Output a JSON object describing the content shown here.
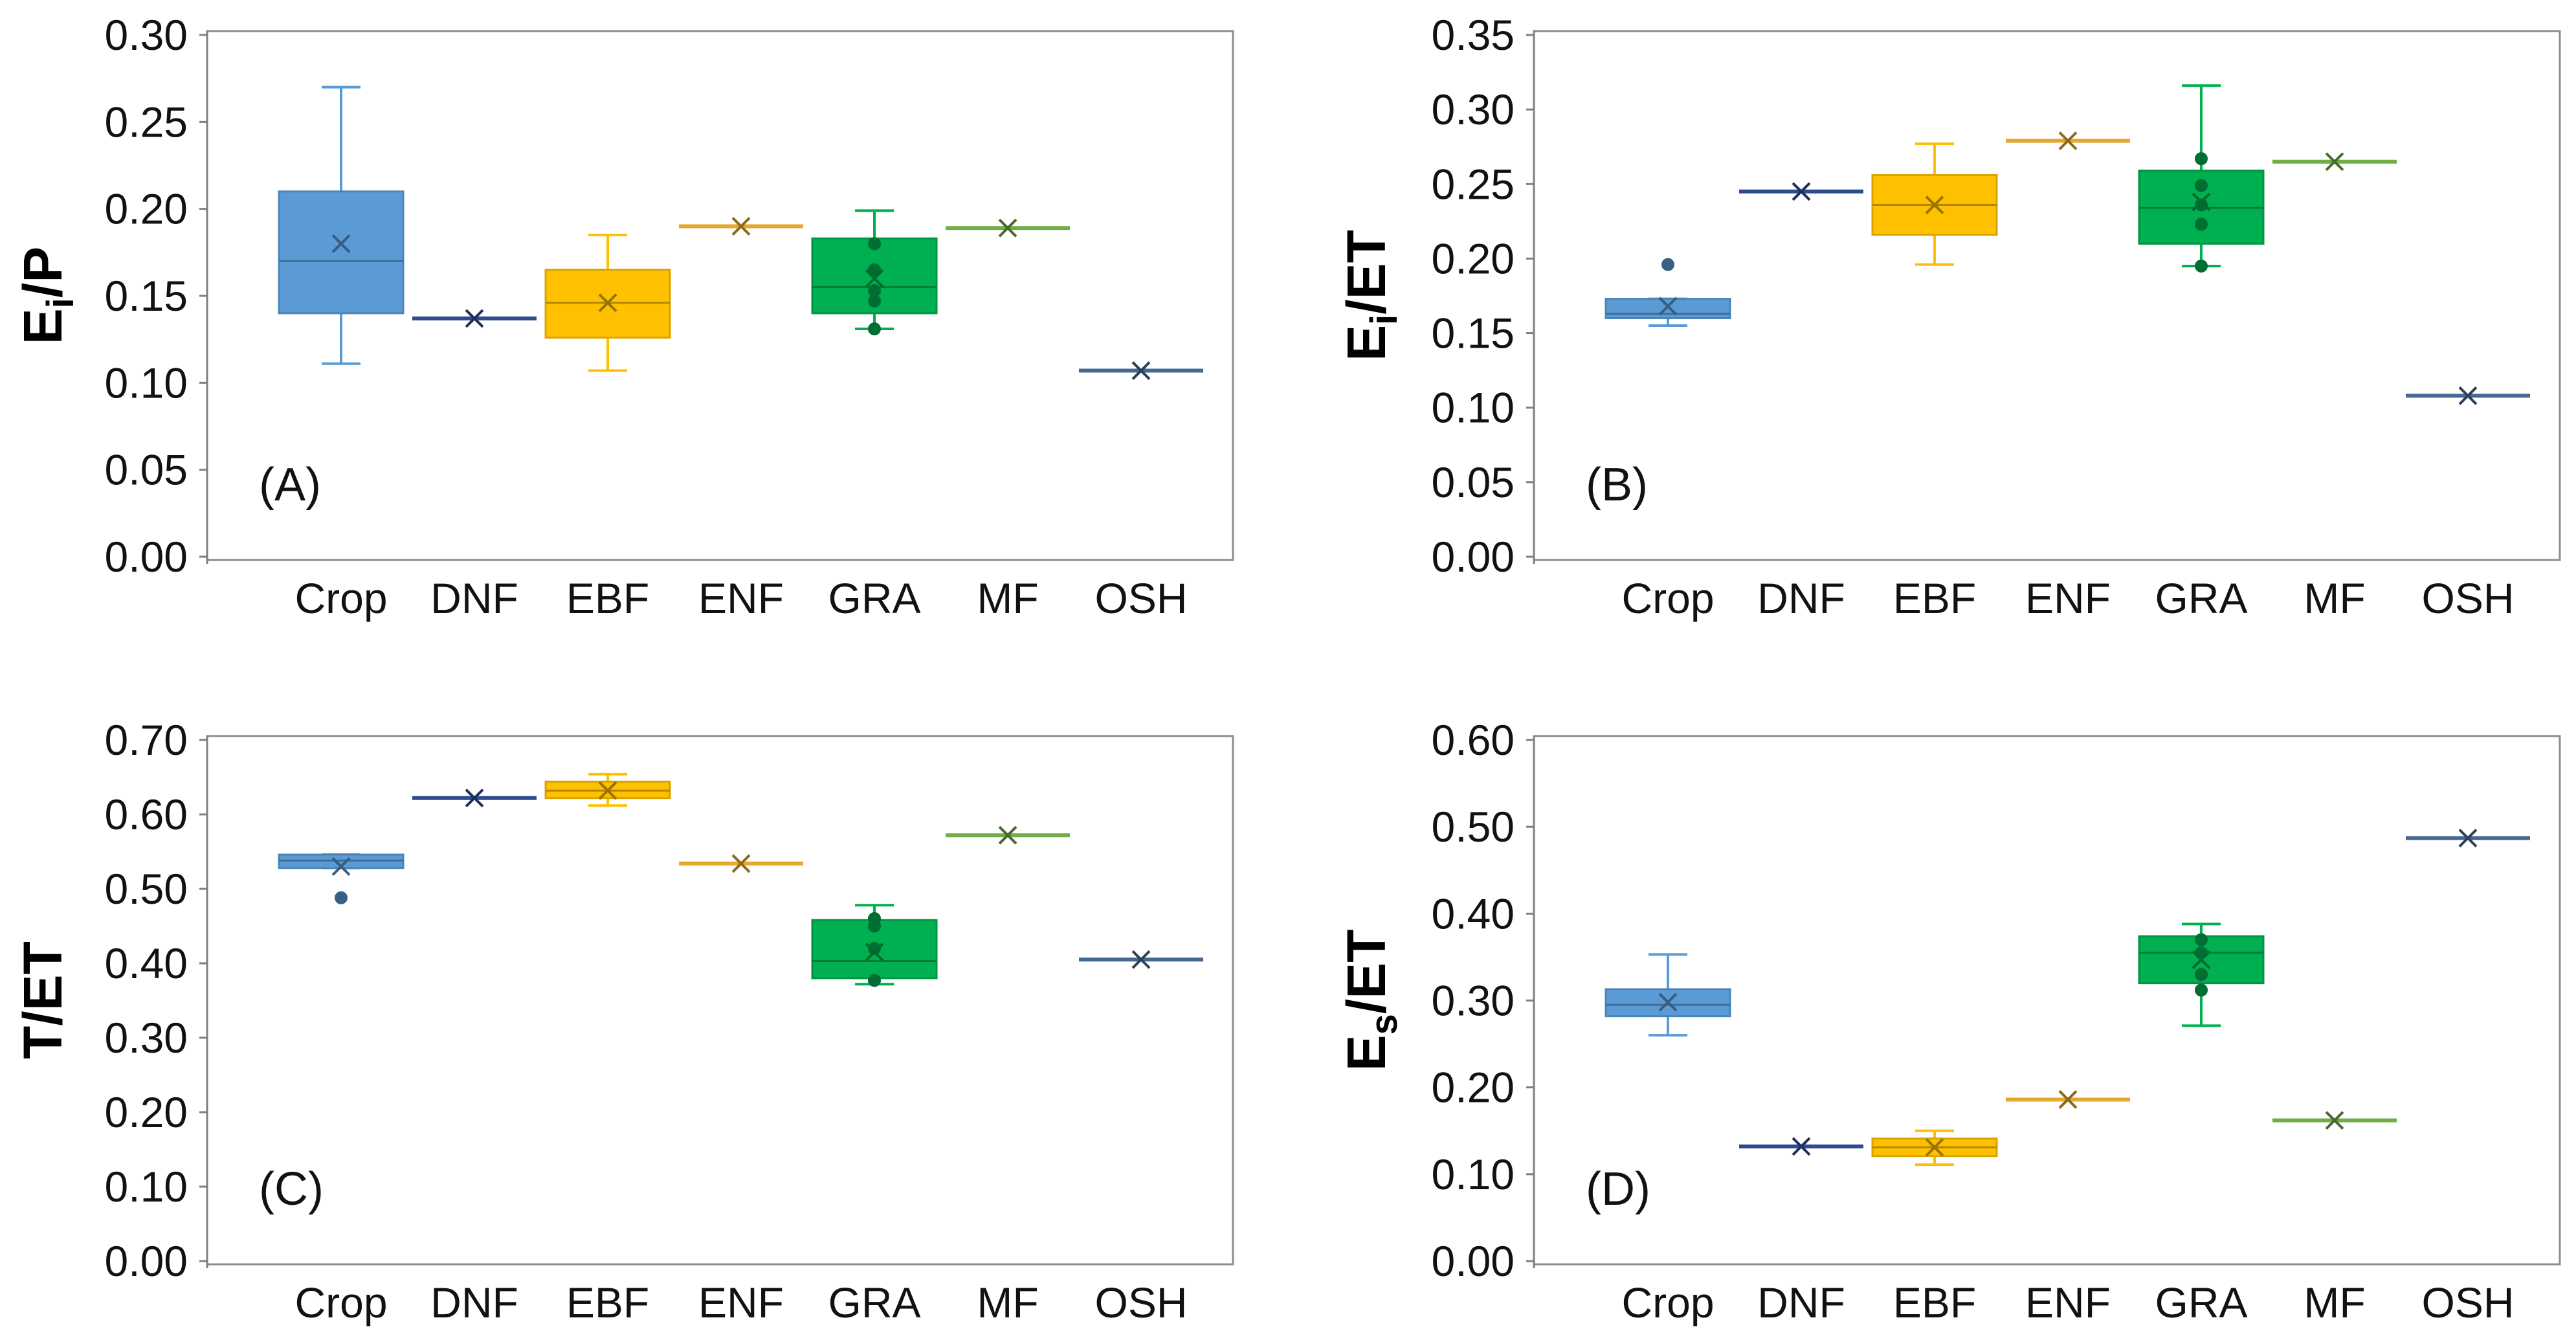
{
  "chart_data": [
    {
      "type": "boxplot",
      "panel_label": "(A)",
      "ylabel_main": "E",
      "ylabel_sub": "i",
      "ylabel_tail": "/P",
      "ylim": [
        0,
        0.3
      ],
      "yticks": [
        "0.00",
        "0.05",
        "0.10",
        "0.15",
        "0.20",
        "0.25",
        "0.30"
      ],
      "categories": [
        "Crop",
        "DNF",
        "EBF",
        "ENF",
        "GRA",
        "MF",
        "OSH"
      ],
      "series": [
        {
          "name": "Crop",
          "color": "#5b9bd5",
          "min": 0.111,
          "q1": 0.14,
          "median": 0.17,
          "q3": 0.21,
          "max": 0.27,
          "mean": 0.18,
          "points": []
        },
        {
          "name": "DNF",
          "color": "#2f4b8f",
          "min": 0.137,
          "q1": 0.137,
          "median": 0.137,
          "q3": 0.137,
          "max": 0.137,
          "mean": 0.137,
          "points": []
        },
        {
          "name": "EBF",
          "color": "#ffc000",
          "min": 0.107,
          "q1": 0.126,
          "median": 0.146,
          "q3": 0.165,
          "max": 0.185,
          "mean": 0.146,
          "points": []
        },
        {
          "name": "ENF",
          "color": "#e4a82c",
          "min": 0.19,
          "q1": 0.19,
          "median": 0.19,
          "q3": 0.19,
          "max": 0.19,
          "mean": 0.19,
          "points": []
        },
        {
          "name": "GRA",
          "color": "#00b050",
          "min": 0.131,
          "q1": 0.14,
          "median": 0.155,
          "q3": 0.183,
          "max": 0.199,
          "mean": 0.16,
          "points": [
            0.131,
            0.147,
            0.153,
            0.165,
            0.18
          ]
        },
        {
          "name": "MF",
          "color": "#70ad47",
          "min": 0.189,
          "q1": 0.189,
          "median": 0.189,
          "q3": 0.189,
          "max": 0.189,
          "mean": 0.189,
          "points": []
        },
        {
          "name": "OSH",
          "color": "#44688f",
          "min": 0.107,
          "q1": 0.107,
          "median": 0.107,
          "q3": 0.107,
          "max": 0.107,
          "mean": 0.107,
          "points": []
        }
      ]
    },
    {
      "type": "boxplot",
      "panel_label": "(B)",
      "ylabel_main": "E",
      "ylabel_sub": "i",
      "ylabel_tail": "/ET",
      "ylim": [
        0,
        0.35
      ],
      "yticks": [
        "0.00",
        "0.05",
        "0.10",
        "0.15",
        "0.20",
        "0.25",
        "0.30",
        "0.35"
      ],
      "categories": [
        "Crop",
        "DNF",
        "EBF",
        "ENF",
        "GRA",
        "MF",
        "OSH"
      ],
      "series": [
        {
          "name": "Crop",
          "color": "#5b9bd5",
          "min": 0.155,
          "q1": 0.16,
          "median": 0.163,
          "q3": 0.173,
          "max": 0.173,
          "mean": 0.168,
          "points": [
            0.196
          ]
        },
        {
          "name": "DNF",
          "color": "#2f4b8f",
          "min": 0.245,
          "q1": 0.245,
          "median": 0.245,
          "q3": 0.245,
          "max": 0.245,
          "mean": 0.245,
          "points": []
        },
        {
          "name": "EBF",
          "color": "#ffc000",
          "min": 0.196,
          "q1": 0.216,
          "median": 0.236,
          "q3": 0.256,
          "max": 0.277,
          "mean": 0.236,
          "points": []
        },
        {
          "name": "ENF",
          "color": "#e4a82c",
          "min": 0.279,
          "q1": 0.279,
          "median": 0.279,
          "q3": 0.279,
          "max": 0.279,
          "mean": 0.279,
          "points": []
        },
        {
          "name": "GRA",
          "color": "#00b050",
          "min": 0.195,
          "q1": 0.21,
          "median": 0.234,
          "q3": 0.259,
          "max": 0.316,
          "mean": 0.238,
          "points": [
            0.195,
            0.223,
            0.236,
            0.249,
            0.267
          ]
        },
        {
          "name": "MF",
          "color": "#70ad47",
          "min": 0.265,
          "q1": 0.265,
          "median": 0.265,
          "q3": 0.265,
          "max": 0.265,
          "mean": 0.265,
          "points": []
        },
        {
          "name": "OSH",
          "color": "#44688f",
          "min": 0.108,
          "q1": 0.108,
          "median": 0.108,
          "q3": 0.108,
          "max": 0.108,
          "mean": 0.108,
          "points": []
        }
      ]
    },
    {
      "type": "boxplot",
      "panel_label": "(C)",
      "ylabel_main": "T/ET",
      "ylabel_sub": "",
      "ylabel_tail": "",
      "ylim": [
        0,
        0.7
      ],
      "yticks": [
        "0.00",
        "0.10",
        "0.20",
        "0.30",
        "0.40",
        "0.50",
        "0.60",
        "0.70"
      ],
      "categories": [
        "Crop",
        "DNF",
        "EBF",
        "ENF",
        "GRA",
        "MF",
        "OSH"
      ],
      "series": [
        {
          "name": "Crop",
          "color": "#5b9bd5",
          "min": 0.528,
          "q1": 0.528,
          "median": 0.538,
          "q3": 0.546,
          "max": 0.546,
          "mean": 0.53,
          "points": [
            0.488
          ]
        },
        {
          "name": "DNF",
          "color": "#2f4b8f",
          "min": 0.622,
          "q1": 0.622,
          "median": 0.622,
          "q3": 0.622,
          "max": 0.622,
          "mean": 0.622,
          "points": []
        },
        {
          "name": "EBF",
          "color": "#ffc000",
          "min": 0.612,
          "q1": 0.622,
          "median": 0.632,
          "q3": 0.644,
          "max": 0.654,
          "mean": 0.632,
          "points": []
        },
        {
          "name": "ENF",
          "color": "#e4a82c",
          "min": 0.534,
          "q1": 0.534,
          "median": 0.534,
          "q3": 0.534,
          "max": 0.534,
          "mean": 0.534,
          "points": []
        },
        {
          "name": "GRA",
          "color": "#00b050",
          "min": 0.372,
          "q1": 0.38,
          "median": 0.403,
          "q3": 0.458,
          "max": 0.478,
          "mean": 0.415,
          "points": [
            0.377,
            0.42,
            0.45,
            0.46
          ]
        },
        {
          "name": "MF",
          "color": "#70ad47",
          "min": 0.572,
          "q1": 0.572,
          "median": 0.572,
          "q3": 0.572,
          "max": 0.572,
          "mean": 0.572,
          "points": []
        },
        {
          "name": "OSH",
          "color": "#44688f",
          "min": 0.405,
          "q1": 0.405,
          "median": 0.405,
          "q3": 0.405,
          "max": 0.405,
          "mean": 0.405,
          "points": []
        }
      ]
    },
    {
      "type": "boxplot",
      "panel_label": "(D)",
      "ylabel_main": "E",
      "ylabel_sub": "s",
      "ylabel_tail": "/ET",
      "ylim": [
        0,
        0.6
      ],
      "yticks": [
        "0.00",
        "0.10",
        "0.20",
        "0.30",
        "0.40",
        "0.50",
        "0.60"
      ],
      "categories": [
        "Crop",
        "DNF",
        "EBF",
        "ENF",
        "GRA",
        "MF",
        "OSH"
      ],
      "series": [
        {
          "name": "Crop",
          "color": "#5b9bd5",
          "min": 0.26,
          "q1": 0.282,
          "median": 0.295,
          "q3": 0.313,
          "max": 0.353,
          "mean": 0.298,
          "points": []
        },
        {
          "name": "DNF",
          "color": "#2f4b8f",
          "min": 0.132,
          "q1": 0.132,
          "median": 0.132,
          "q3": 0.132,
          "max": 0.132,
          "mean": 0.132,
          "points": []
        },
        {
          "name": "EBF",
          "color": "#ffc000",
          "min": 0.111,
          "q1": 0.121,
          "median": 0.131,
          "q3": 0.141,
          "max": 0.15,
          "mean": 0.131,
          "points": []
        },
        {
          "name": "ENF",
          "color": "#e4a82c",
          "min": 0.186,
          "q1": 0.186,
          "median": 0.186,
          "q3": 0.186,
          "max": 0.186,
          "mean": 0.186,
          "points": []
        },
        {
          "name": "GRA",
          "color": "#00b050",
          "min": 0.271,
          "q1": 0.32,
          "median": 0.355,
          "q3": 0.374,
          "max": 0.388,
          "mean": 0.347,
          "points": [
            0.312,
            0.33,
            0.355,
            0.37
          ]
        },
        {
          "name": "MF",
          "color": "#70ad47",
          "min": 0.162,
          "q1": 0.162,
          "median": 0.162,
          "q3": 0.162,
          "max": 0.162,
          "mean": 0.162,
          "points": []
        },
        {
          "name": "OSH",
          "color": "#44688f",
          "min": 0.487,
          "q1": 0.487,
          "median": 0.487,
          "q3": 0.487,
          "max": 0.487,
          "mean": 0.487,
          "points": []
        }
      ]
    }
  ]
}
